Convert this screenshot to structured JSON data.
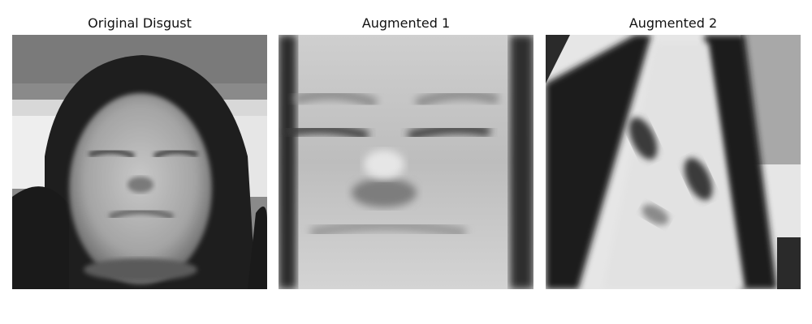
{
  "panels": [
    {
      "title": "Original Disgust",
      "image_icon": "grayscale-face-photo-original"
    },
    {
      "title": "Augmented 1",
      "image_icon": "grayscale-face-photo-zoomed-crop"
    },
    {
      "title": "Augmented 2",
      "image_icon": "grayscale-face-photo-rotated-flipped"
    }
  ]
}
